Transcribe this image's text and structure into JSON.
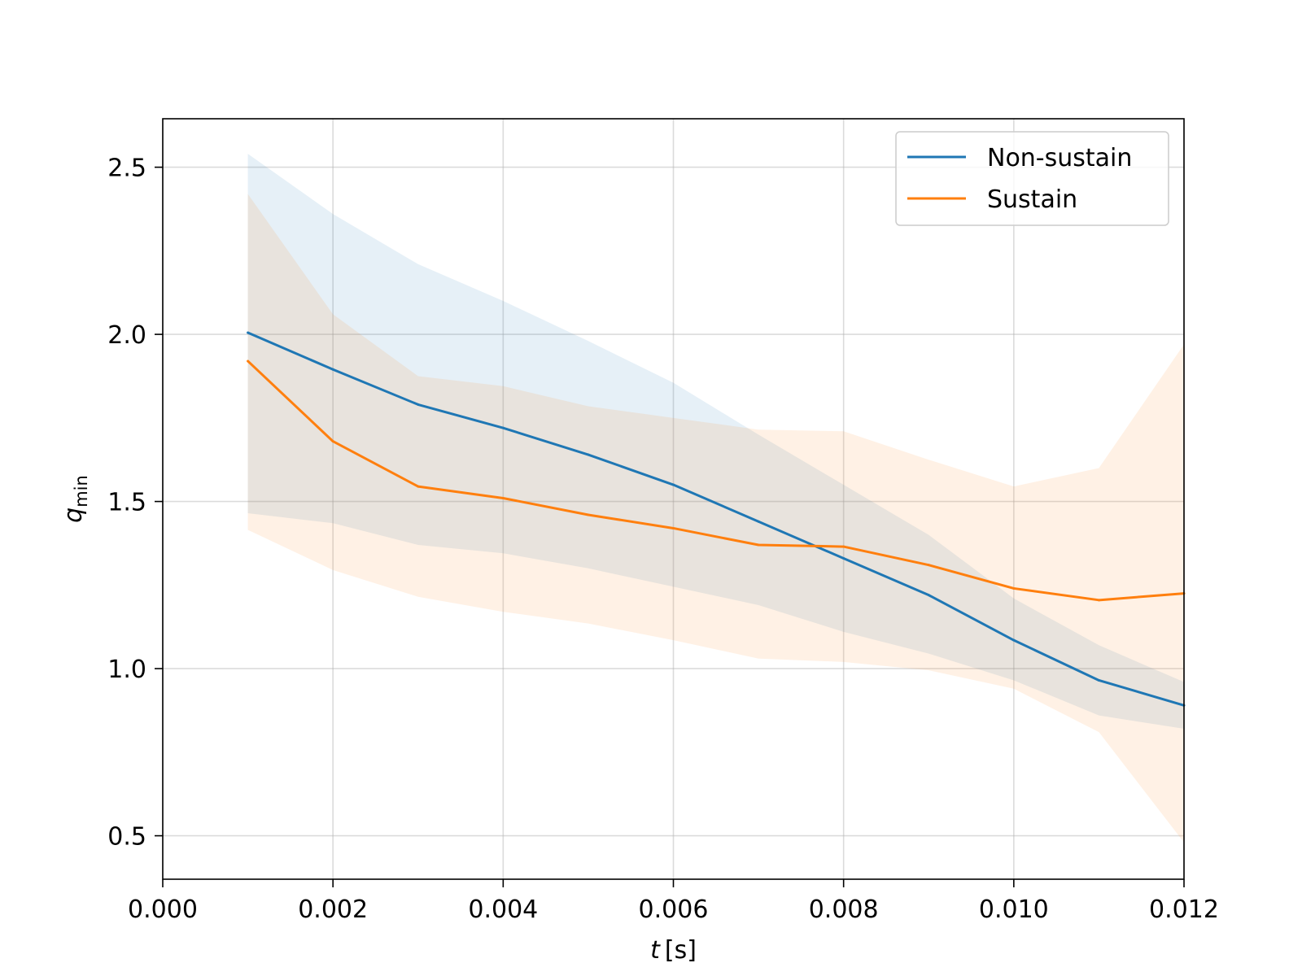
{
  "chart_data": {
    "type": "line",
    "x": [
      0.001,
      0.002,
      0.003,
      0.004,
      0.005,
      0.006,
      0.007,
      0.008,
      0.009,
      0.01,
      0.011,
      0.012
    ],
    "series": [
      {
        "name": "Non-sustain",
        "color": "#1f77b4",
        "values": [
          2.005,
          1.895,
          1.79,
          1.72,
          1.64,
          1.55,
          1.44,
          1.33,
          1.22,
          1.085,
          0.965,
          0.89
        ],
        "band_upper": [
          2.54,
          2.36,
          2.21,
          2.1,
          1.98,
          1.855,
          1.7,
          1.55,
          1.4,
          1.21,
          1.07,
          0.96
        ],
        "band_lower": [
          1.465,
          1.435,
          1.37,
          1.345,
          1.3,
          1.245,
          1.19,
          1.11,
          1.045,
          0.965,
          0.86,
          0.82
        ]
      },
      {
        "name": "Sustain",
        "color": "#ff7f0e",
        "values": [
          1.92,
          1.68,
          1.545,
          1.51,
          1.46,
          1.42,
          1.37,
          1.365,
          1.31,
          1.24,
          1.205,
          1.225
        ],
        "band_upper": [
          2.42,
          2.06,
          1.875,
          1.845,
          1.785,
          1.75,
          1.715,
          1.71,
          1.625,
          1.545,
          1.6,
          1.97
        ],
        "band_lower": [
          1.415,
          1.295,
          1.215,
          1.17,
          1.135,
          1.085,
          1.03,
          1.02,
          0.995,
          0.94,
          0.81,
          0.48
        ]
      }
    ],
    "xlim": [
      0.0,
      0.012
    ],
    "ylim": [
      0.37,
      2.645
    ],
    "xticks": [
      0.0,
      0.002,
      0.004,
      0.006,
      0.008,
      0.01,
      0.012
    ],
    "xtick_labels": [
      "0.000",
      "0.002",
      "0.004",
      "0.006",
      "0.008",
      "0.010",
      "0.012"
    ],
    "yticks": [
      0.5,
      1.0,
      1.5,
      2.0,
      2.5
    ],
    "ytick_labels": [
      "0.5",
      "1.0",
      "1.5",
      "2.0",
      "2.5"
    ],
    "xlabel": {
      "var": "t",
      "unit": "[s]"
    },
    "ylabel": {
      "var": "q",
      "sub": "min"
    },
    "grid": true,
    "legend_position": "top-right"
  }
}
